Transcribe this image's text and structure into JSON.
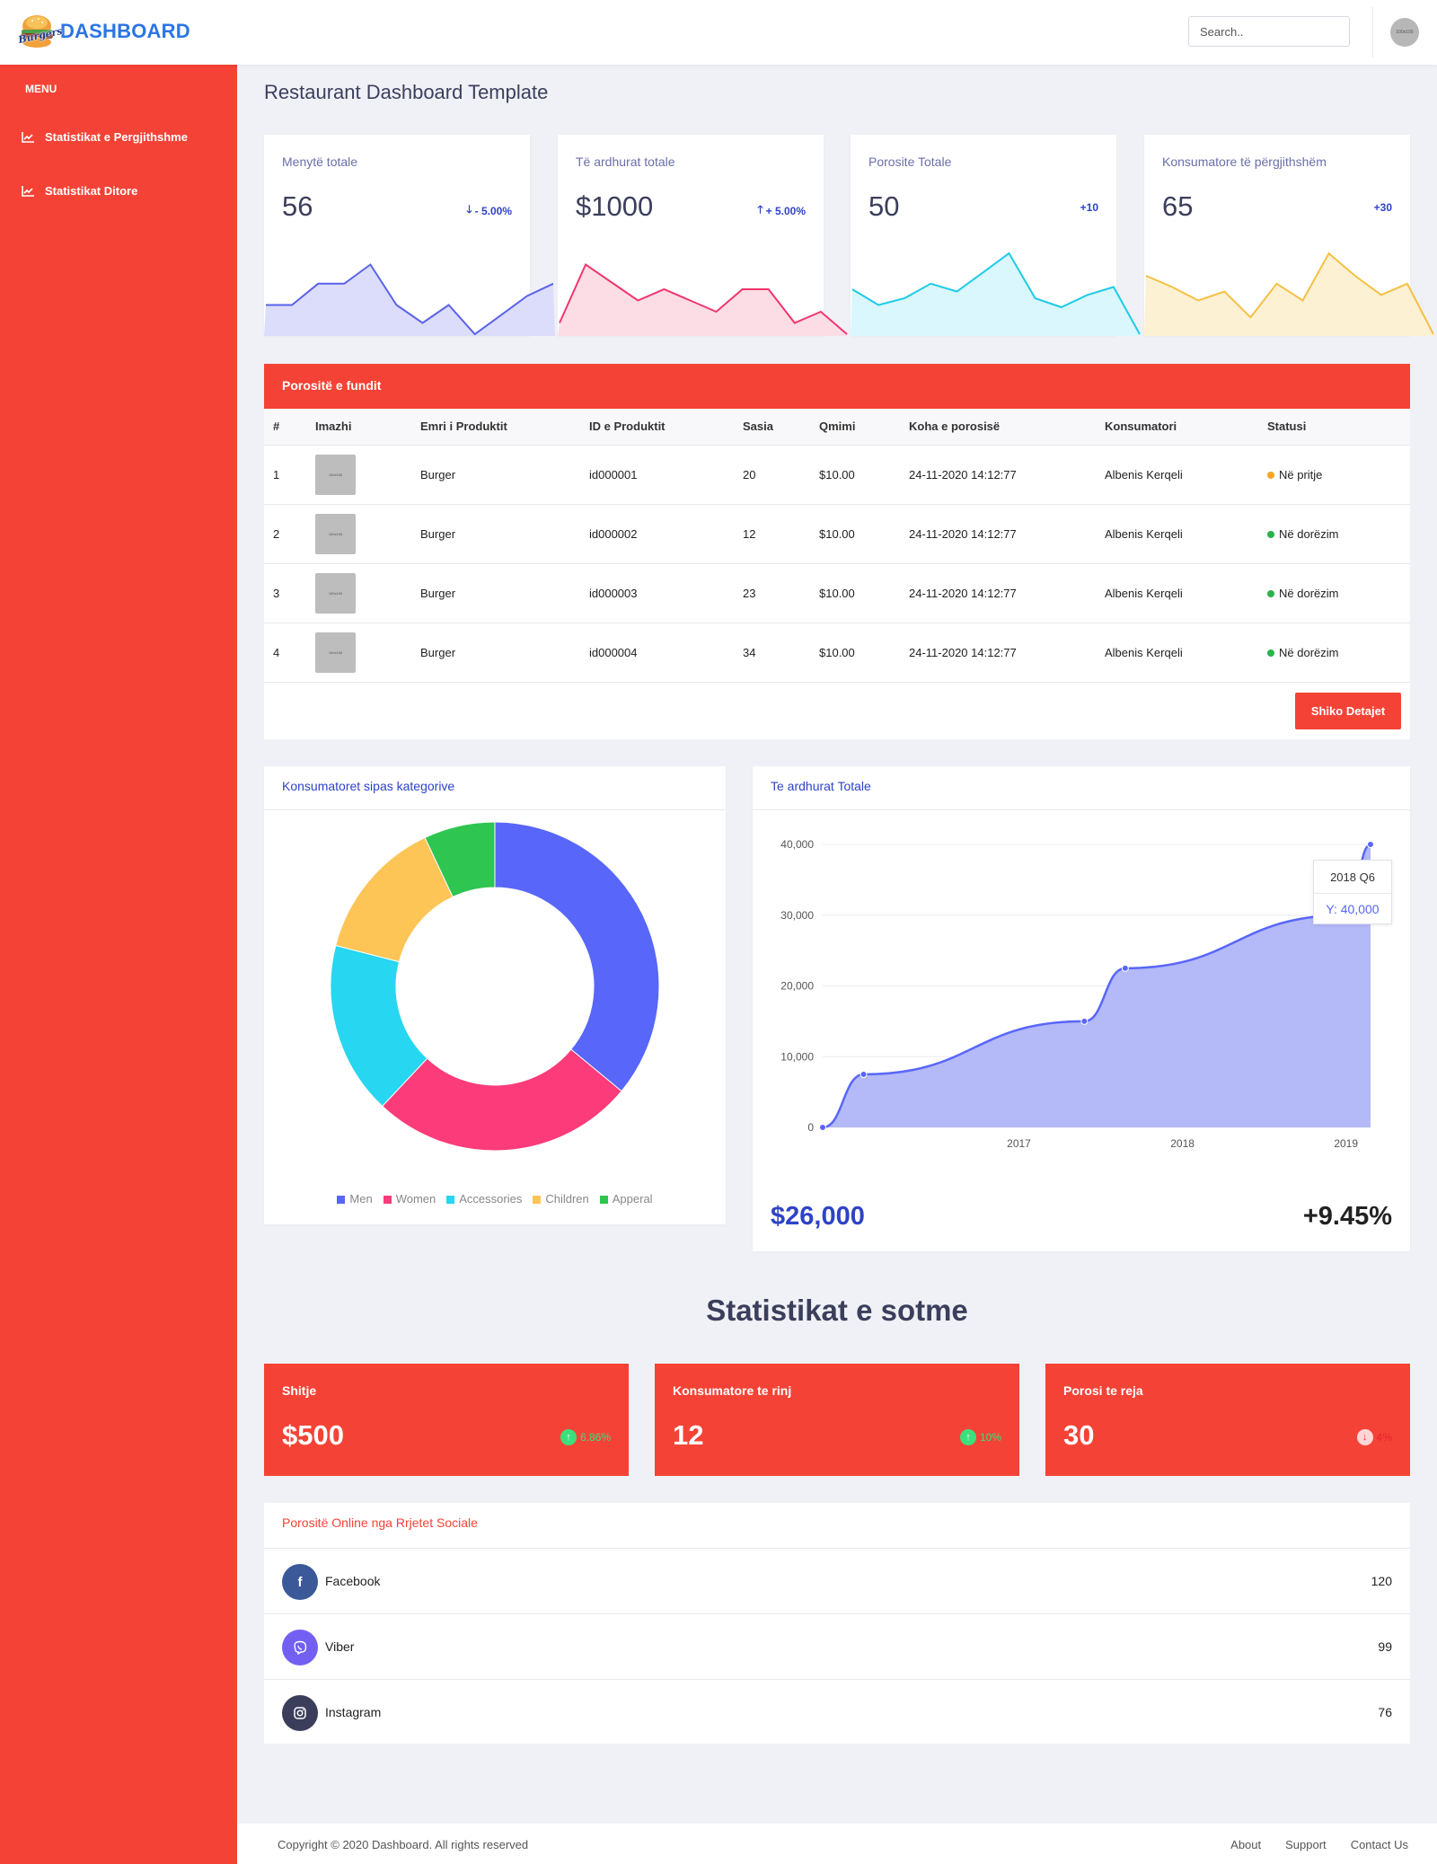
{
  "header": {
    "logo_badge": "Burgers",
    "logo_text": "DASHBOARD",
    "search_placeholder": "Search..",
    "avatar_text": "100x100"
  },
  "sidebar": {
    "menu_title": "MENU",
    "items": [
      {
        "label": "Statistikat e Pergjithshme",
        "icon": "line-chart-icon"
      },
      {
        "label": "Statistikat Ditore",
        "icon": "line-chart-icon"
      }
    ]
  },
  "page": {
    "title": "Restaurant Dashboard Template"
  },
  "kpis": [
    {
      "title": "Menytë totale",
      "value": "56",
      "delta": "- 5.00%",
      "direction": "down",
      "color": "#5a63e8",
      "fill": "#dcdcfb",
      "series": [
        26,
        26,
        45,
        45,
        62,
        26,
        10,
        26,
        0,
        17,
        34,
        45
      ]
    },
    {
      "title": "Të ardhurat totale",
      "value": "$1000",
      "delta": "+ 5.00%",
      "direction": "up",
      "color": "#f0366e",
      "fill": "#fcdde6",
      "series": [
        10,
        62,
        46,
        30,
        40,
        30,
        20,
        40,
        40,
        10,
        20,
        0
      ]
    },
    {
      "title": "Porosite Totale",
      "value": "50",
      "delta": "+10",
      "direction": "none",
      "color": "#1fcbe8",
      "fill": "#d9f7fc",
      "series": [
        40,
        26,
        32,
        45,
        38,
        55,
        72,
        32,
        24,
        35,
        42,
        0
      ]
    },
    {
      "title": "Konsumatore të përgjithshëm",
      "value": "65",
      "delta": "+30",
      "direction": "none",
      "color": "#f5c044",
      "fill": "#fdf1d4",
      "series": [
        52,
        42,
        30,
        38,
        15,
        45,
        30,
        72,
        52,
        35,
        45,
        0
      ]
    }
  ],
  "orders": {
    "title": "Porositë e fundit",
    "columns": [
      "#",
      "Imazhi",
      "Emri i Produktit",
      "ID e Produktit",
      "Sasia",
      "Qmimi",
      "Koha e porosisë",
      "Konsumatori",
      "Statusi"
    ],
    "rows": [
      {
        "n": "1",
        "thumb": "100x100",
        "product": "Burger",
        "id": "id000001",
        "qty": "20",
        "price": "$10.00",
        "time": "24-11-2020 14:12:77",
        "customer": "Albenis Kerqeli",
        "status": "Në pritje",
        "status_color": "#f5a623"
      },
      {
        "n": "2",
        "thumb": "100x100",
        "product": "Burger",
        "id": "id000002",
        "qty": "12",
        "price": "$10.00",
        "time": "24-11-2020 14:12:77",
        "customer": "Albenis Kerqeli",
        "status": "Në dorëzim",
        "status_color": "#2bb24c"
      },
      {
        "n": "3",
        "thumb": "100x100",
        "product": "Burger",
        "id": "id000003",
        "qty": "23",
        "price": "$10.00",
        "time": "24-11-2020 14:12:77",
        "customer": "Albenis Kerqeli",
        "status": "Në dorëzim",
        "status_color": "#2bb24c"
      },
      {
        "n": "4",
        "thumb": "100x100",
        "product": "Burger",
        "id": "id000004",
        "qty": "34",
        "price": "$10.00",
        "time": "24-11-2020 14:12:77",
        "customer": "Albenis Kerqeli",
        "status": "Në dorëzim",
        "status_color": "#2bb24c"
      }
    ],
    "button": "Shiko Detajet"
  },
  "categories": {
    "title": "Konsumatoret sipas kategorive",
    "chart_data": {
      "type": "pie",
      "categories": [
        "Men",
        "Women",
        "Accessories",
        "Children",
        "Apperal"
      ],
      "values": [
        36,
        26,
        17,
        14,
        7
      ],
      "colors": [
        "#5866fa",
        "#fc3b7a",
        "#27d6f0",
        "#fdc456",
        "#2ec551"
      ]
    }
  },
  "revenue": {
    "title": "Te ardhurat Totale",
    "total": "$26,000",
    "growth": "+9.45%",
    "tooltip_title": "2018 Q6",
    "tooltip_value": "Y: 40,000",
    "chart_data": {
      "type": "area",
      "x": [
        2016.1,
        2016.35,
        2017.7,
        2017.95,
        2019.3,
        2019.45
      ],
      "y": [
        0,
        7500,
        15000,
        22500,
        30000,
        40000
      ],
      "x_ticks": [
        "2017",
        "2018",
        "2019"
      ],
      "y_ticks": [
        "40,000",
        "30,000",
        "20,000",
        "10,000",
        "0"
      ],
      "ylim": [
        0,
        40000
      ],
      "color": "#5866fa",
      "fill": "#b4b9f8"
    }
  },
  "today": {
    "title": "Statistikat e sotme",
    "cards": [
      {
        "title": "Shitje",
        "value": "$500",
        "delta": "6.86%",
        "direction": "up",
        "color": "#3be07c"
      },
      {
        "title": "Konsumatore te rinj",
        "value": "12",
        "delta": "10%",
        "direction": "up",
        "color": "#3be07c"
      },
      {
        "title": "Porosi te reja",
        "value": "30",
        "delta": "4%",
        "direction": "down",
        "color": "#e8222b"
      }
    ]
  },
  "social": {
    "title": "Porositë Online nga Rrjetet Sociale",
    "items": [
      {
        "name": "Facebook",
        "value": "120",
        "icon": "facebook-icon",
        "color": "#3b5998"
      },
      {
        "name": "Viber",
        "value": "99",
        "icon": "viber-icon",
        "color": "#7360f2"
      },
      {
        "name": "Instagram",
        "value": "76",
        "icon": "instagram-icon",
        "color": "#3a3e5a"
      }
    ]
  },
  "footer": {
    "copyright": "Copyright © 2020 Dashboard. All rights reserved",
    "links": [
      "About",
      "Support",
      "Contact Us"
    ]
  }
}
